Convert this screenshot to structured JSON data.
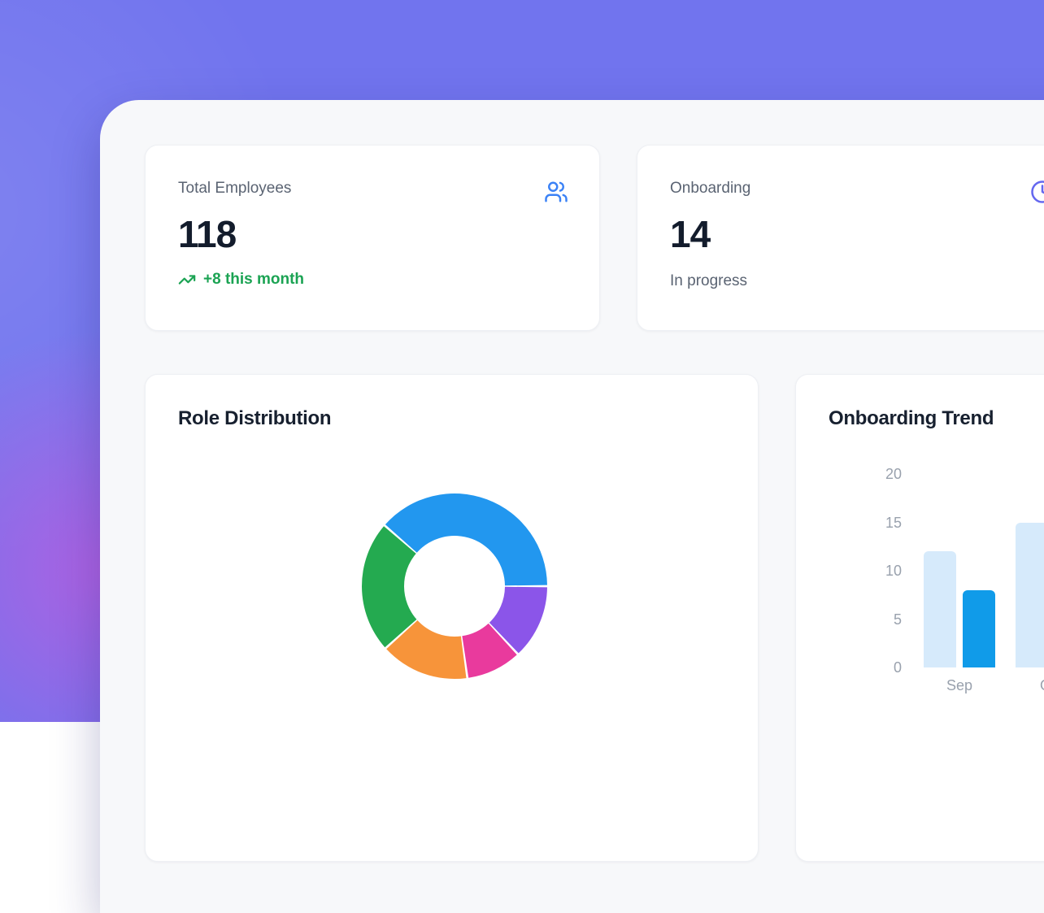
{
  "cards": {
    "total_employees": {
      "label": "Total Employees",
      "value": "118",
      "delta": "+8 this month",
      "icon": "users-icon",
      "icon_color": "#3b82f6",
      "delta_color": "#1ba353"
    },
    "onboarding": {
      "label": "Onboarding",
      "value": "14",
      "status": "In progress",
      "icon": "clock-icon",
      "icon_color": "#6467ef"
    }
  },
  "chart_data": [
    {
      "type": "pie",
      "title": "Role Distribution",
      "donut": true,
      "legend": "none",
      "start_angle_deg": -49,
      "segments": [
        {
          "name": "blue",
          "color": "#2297ef",
          "sweep_deg": 139,
          "percent": 38.6
        },
        {
          "name": "purple",
          "color": "#8b55e9",
          "sweep_deg": 47,
          "percent": 13.1
        },
        {
          "name": "pink",
          "color": "#e93a9d",
          "sweep_deg": 35,
          "percent": 9.7
        },
        {
          "name": "orange",
          "color": "#f7943a",
          "sweep_deg": 56,
          "percent": 15.5
        },
        {
          "name": "green",
          "color": "#24aa50",
          "sweep_deg": 83,
          "percent": 23.1
        }
      ]
    },
    {
      "type": "bar",
      "title": "Onboarding Trend",
      "categories": [
        "Sep",
        "Oct"
      ],
      "series": [
        {
          "name": "light-blue",
          "color": "#d6eafb",
          "values": [
            12,
            15
          ]
        },
        {
          "name": "dark-blue",
          "color": "#109be9",
          "values": [
            8,
            null
          ]
        }
      ],
      "yticks": [
        0,
        5,
        10,
        15,
        20
      ],
      "ylim": [
        0,
        20
      ],
      "grid": false
    }
  ]
}
